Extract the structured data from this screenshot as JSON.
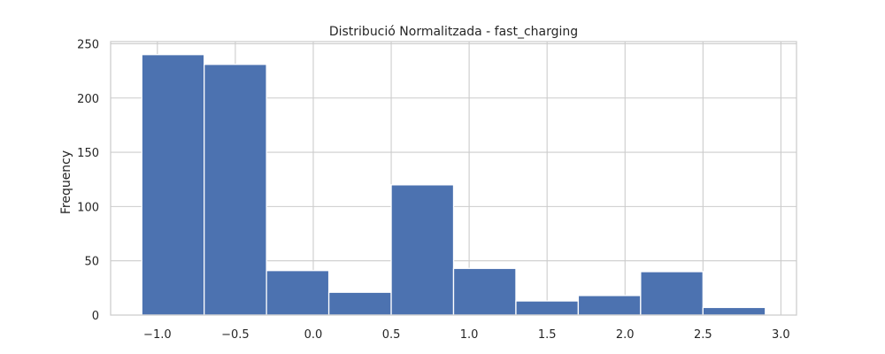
{
  "chart_data": {
    "type": "bar",
    "title": "Distribució Normalitzada - fast_charging",
    "xlabel": "",
    "ylabel": "Frequency",
    "bins": [
      {
        "start": -1.1,
        "end": -0.7,
        "count": 240
      },
      {
        "start": -0.7,
        "end": -0.3,
        "count": 231
      },
      {
        "start": -0.3,
        "end": 0.1,
        "count": 41
      },
      {
        "start": 0.1,
        "end": 0.5,
        "count": 21
      },
      {
        "start": 0.5,
        "end": 0.9,
        "count": 120
      },
      {
        "start": 0.9,
        "end": 1.3,
        "count": 43
      },
      {
        "start": 1.3,
        "end": 1.7,
        "count": 13
      },
      {
        "start": 1.7,
        "end": 2.1,
        "count": 18
      },
      {
        "start": 2.1,
        "end": 2.5,
        "count": 40
      },
      {
        "start": 2.5,
        "end": 2.9,
        "count": 7
      }
    ],
    "xlim": [
      -1.3,
      3.1
    ],
    "ylim": [
      0,
      252
    ],
    "xticks": [
      -1.0,
      -0.5,
      0.0,
      0.5,
      1.0,
      1.5,
      2.0,
      2.5,
      3.0
    ],
    "xtick_labels": [
      "−1.0",
      "−0.5",
      "0.0",
      "0.5",
      "1.0",
      "1.5",
      "2.0",
      "2.5",
      "3.0"
    ],
    "yticks": [
      0,
      50,
      100,
      150,
      200,
      250
    ],
    "ytick_labels": [
      "0",
      "50",
      "100",
      "150",
      "200",
      "250"
    ],
    "grid": true,
    "bar_color": "#4c72b0",
    "grid_color": "#cccccc"
  }
}
